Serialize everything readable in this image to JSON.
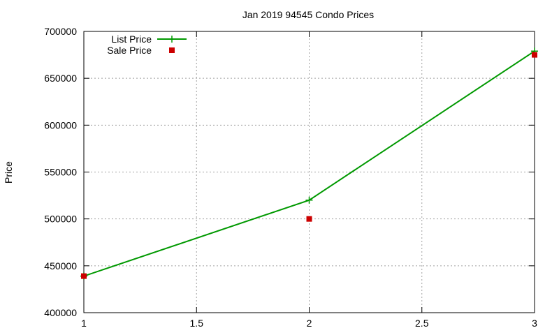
{
  "chart_data": {
    "type": "line",
    "title": "Jan 2019 94545 Condo Prices",
    "xlabel": "",
    "ylabel": "Price",
    "xlim": [
      1,
      3
    ],
    "ylim": [
      400000,
      700000
    ],
    "xticks": [
      1,
      1.5,
      2,
      2.5,
      3
    ],
    "xtick_labels": [
      "1",
      "1.5",
      "2",
      "2.5",
      "3"
    ],
    "yticks": [
      400000,
      450000,
      500000,
      550000,
      600000,
      650000,
      700000
    ],
    "ytick_labels": [
      "400000",
      "450000",
      "500000",
      "550000",
      "600000",
      "650000",
      "700000"
    ],
    "grid": true,
    "legend_position": "top-left",
    "series": [
      {
        "name": "List Price",
        "style": "linespoints",
        "marker": "plus",
        "color": "#009900",
        "x": [
          1,
          2,
          3
        ],
        "y": [
          439000,
          520000,
          679000
        ]
      },
      {
        "name": "Sale Price",
        "style": "points",
        "marker": "square",
        "color": "#cc0000",
        "x": [
          1,
          2,
          3
        ],
        "y": [
          439000,
          500000,
          675000
        ]
      }
    ]
  }
}
